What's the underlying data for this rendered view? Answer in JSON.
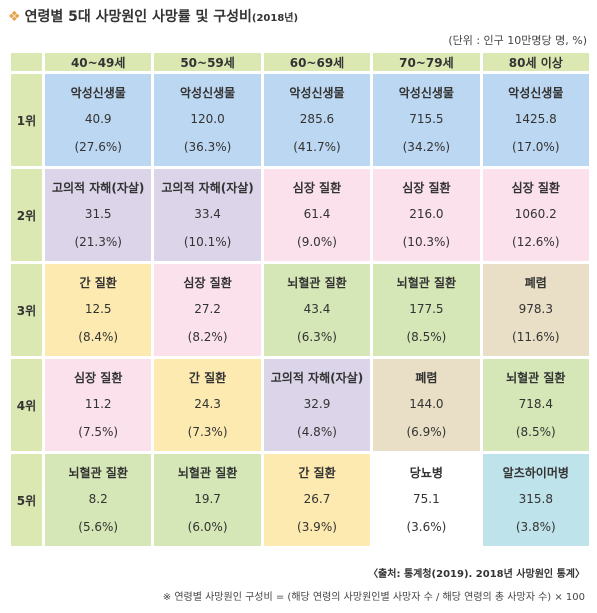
{
  "title": "연령별 5대 사망원인 사망률 및 구성비",
  "title_sub": "(2018년)",
  "unit": "(단위 : 인구 10만명당 명, %)",
  "columns": [
    "40~49세",
    "50~59세",
    "60~69세",
    "70~79세",
    "80세 이상"
  ],
  "rows": [
    {
      "rank": "1위",
      "cells": [
        {
          "name": "악성신생물",
          "value": "40.9",
          "pct": "(27.6%)",
          "color": "#bcd7f1"
        },
        {
          "name": "악성신생물",
          "value": "120.0",
          "pct": "(36.3%)",
          "color": "#bcd7f1"
        },
        {
          "name": "악성신생물",
          "value": "285.6",
          "pct": "(41.7%)",
          "color": "#bcd7f1"
        },
        {
          "name": "악성신생물",
          "value": "715.5",
          "pct": "(34.2%)",
          "color": "#bcd7f1"
        },
        {
          "name": "악성신생물",
          "value": "1425.8",
          "pct": "(17.0%)",
          "color": "#bcd7f1"
        }
      ]
    },
    {
      "rank": "2위",
      "cells": [
        {
          "name": "고의적 자해(자살)",
          "value": "31.5",
          "pct": "(21.3%)",
          "color": "#dcd5ea"
        },
        {
          "name": "고의적 자해(자살)",
          "value": "33.4",
          "pct": "(10.1%)",
          "color": "#dcd5ea"
        },
        {
          "name": "심장 질환",
          "value": "61.4",
          "pct": "(9.0%)",
          "color": "#fbe1ec"
        },
        {
          "name": "심장 질환",
          "value": "216.0",
          "pct": "(10.3%)",
          "color": "#fbe1ec"
        },
        {
          "name": "심장 질환",
          "value": "1060.2",
          "pct": "(12.6%)",
          "color": "#fbe1ec"
        }
      ]
    },
    {
      "rank": "3위",
      "cells": [
        {
          "name": "간 질환",
          "value": "12.5",
          "pct": "(8.4%)",
          "color": "#fdeab0"
        },
        {
          "name": "심장 질환",
          "value": "27.2",
          "pct": "(8.2%)",
          "color": "#fbe1ec"
        },
        {
          "name": "뇌혈관 질환",
          "value": "43.4",
          "pct": "(6.3%)",
          "color": "#d5e7b6"
        },
        {
          "name": "뇌혈관 질환",
          "value": "177.5",
          "pct": "(8.5%)",
          "color": "#d5e7b6"
        },
        {
          "name": "폐렴",
          "value": "978.3",
          "pct": "(11.6%)",
          "color": "#e9dfc6"
        }
      ]
    },
    {
      "rank": "4위",
      "cells": [
        {
          "name": "심장 질환",
          "value": "11.2",
          "pct": "(7.5%)",
          "color": "#fbe1ec"
        },
        {
          "name": "간 질환",
          "value": "24.3",
          "pct": "(7.3%)",
          "color": "#fdeab0"
        },
        {
          "name": "고의적 자해(자살)",
          "value": "32.9",
          "pct": "(4.8%)",
          "color": "#dcd5ea"
        },
        {
          "name": "폐렴",
          "value": "144.0",
          "pct": "(6.9%)",
          "color": "#e9dfc6"
        },
        {
          "name": "뇌혈관 질환",
          "value": "718.4",
          "pct": "(8.5%)",
          "color": "#d5e7b6"
        }
      ]
    },
    {
      "rank": "5위",
      "cells": [
        {
          "name": "뇌혈관 질환",
          "value": "8.2",
          "pct": "(5.6%)",
          "color": "#d5e7b6"
        },
        {
          "name": "뇌혈관 질환",
          "value": "19.7",
          "pct": "(6.0%)",
          "color": "#d5e7b6"
        },
        {
          "name": "간 질환",
          "value": "26.7",
          "pct": "(3.9%)",
          "color": "#fdeab0"
        },
        {
          "name": "당뇨병",
          "value": "75.1",
          "pct": "(3.6%)",
          "color": "#ffffff"
        },
        {
          "name": "알츠하이머병",
          "value": "315.8",
          "pct": "(3.8%)",
          "color": "#bfe3ea"
        }
      ]
    }
  ],
  "source": "〈출처: 통계청(2019). 2018년 사망원인 통계〉",
  "footnote": "※ 연령별 사망원인 구성비 = (해당 연령의 사망원인별 사망자 수 / 해당 연령의 총 사망자 수) × 100"
}
